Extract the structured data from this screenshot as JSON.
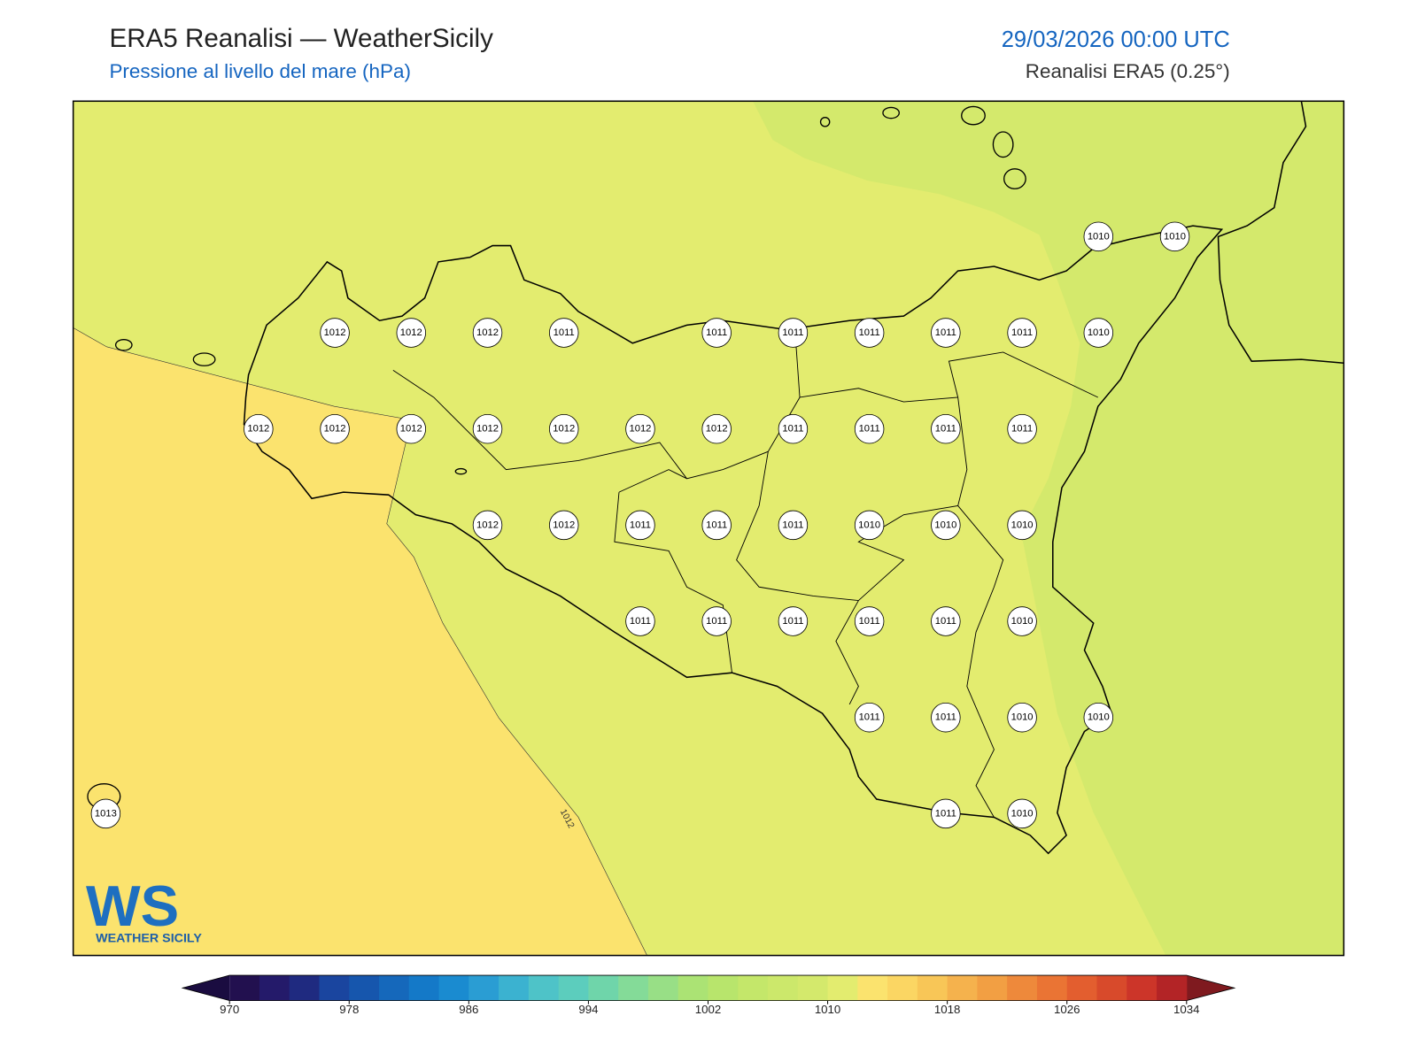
{
  "header": {
    "title": "ERA5 Reanalisi — WeatherSicily",
    "subtitle": "Pressione al livello del mare (hPa)",
    "datetime": "29/03/2026 00:00 UTC",
    "source": "Reanalisi ERA5 (0.25°)"
  },
  "contour_label": "1012",
  "pressure_grid": [
    [
      null,
      null,
      null,
      null,
      null,
      null,
      null,
      null,
      null,
      null,
      null,
      null,
      null,
      1010,
      1010
    ],
    [
      null,
      null,
      null,
      1012,
      1012,
      1012,
      1011,
      null,
      1011,
      1011,
      1011,
      1011,
      1011,
      1010,
      null
    ],
    [
      null,
      null,
      1012,
      1012,
      1012,
      1012,
      1012,
      1012,
      1012,
      1011,
      1011,
      1011,
      1011,
      null,
      null
    ],
    [
      null,
      null,
      null,
      null,
      null,
      1012,
      1012,
      1011,
      1011,
      1011,
      1010,
      1010,
      1010,
      null,
      null
    ],
    [
      null,
      null,
      null,
      null,
      null,
      null,
      null,
      1011,
      1011,
      1011,
      1011,
      1011,
      1010,
      null,
      null
    ],
    [
      null,
      null,
      null,
      null,
      null,
      null,
      null,
      null,
      null,
      null,
      1011,
      1011,
      1010,
      1010,
      null
    ],
    [
      1013,
      null,
      null,
      null,
      null,
      null,
      null,
      null,
      null,
      null,
      null,
      1011,
      1010,
      null,
      null
    ]
  ],
  "colorbar": {
    "range": [
      970,
      1034
    ],
    "ticks": [
      970,
      978,
      986,
      994,
      1002,
      1010,
      1018,
      1026,
      1034
    ],
    "colors": [
      "#22104f",
      "#241a6a",
      "#1f2a80",
      "#1a459f",
      "#1656ad",
      "#1568bb",
      "#1479c8",
      "#1a8bd0",
      "#2a9dd3",
      "#3bb2d0",
      "#4ec3c8",
      "#5ccdbd",
      "#6fd5aa",
      "#84db98",
      "#98df86",
      "#abe374",
      "#b8e56c",
      "#c4e76a",
      "#cce86b",
      "#d4e96c",
      "#e3ec6f",
      "#fbe36e",
      "#fbd663",
      "#f8c657",
      "#f5b24d",
      "#f29f43",
      "#ee893b",
      "#ea7434",
      "#e35e2f",
      "#d84a2b",
      "#cc3529",
      "#b32426"
    ],
    "under_color": "#1a0c40",
    "over_color": "#7f1a1f"
  },
  "logo": {
    "mark": "WS",
    "text": "WEATHER SICILY"
  }
}
